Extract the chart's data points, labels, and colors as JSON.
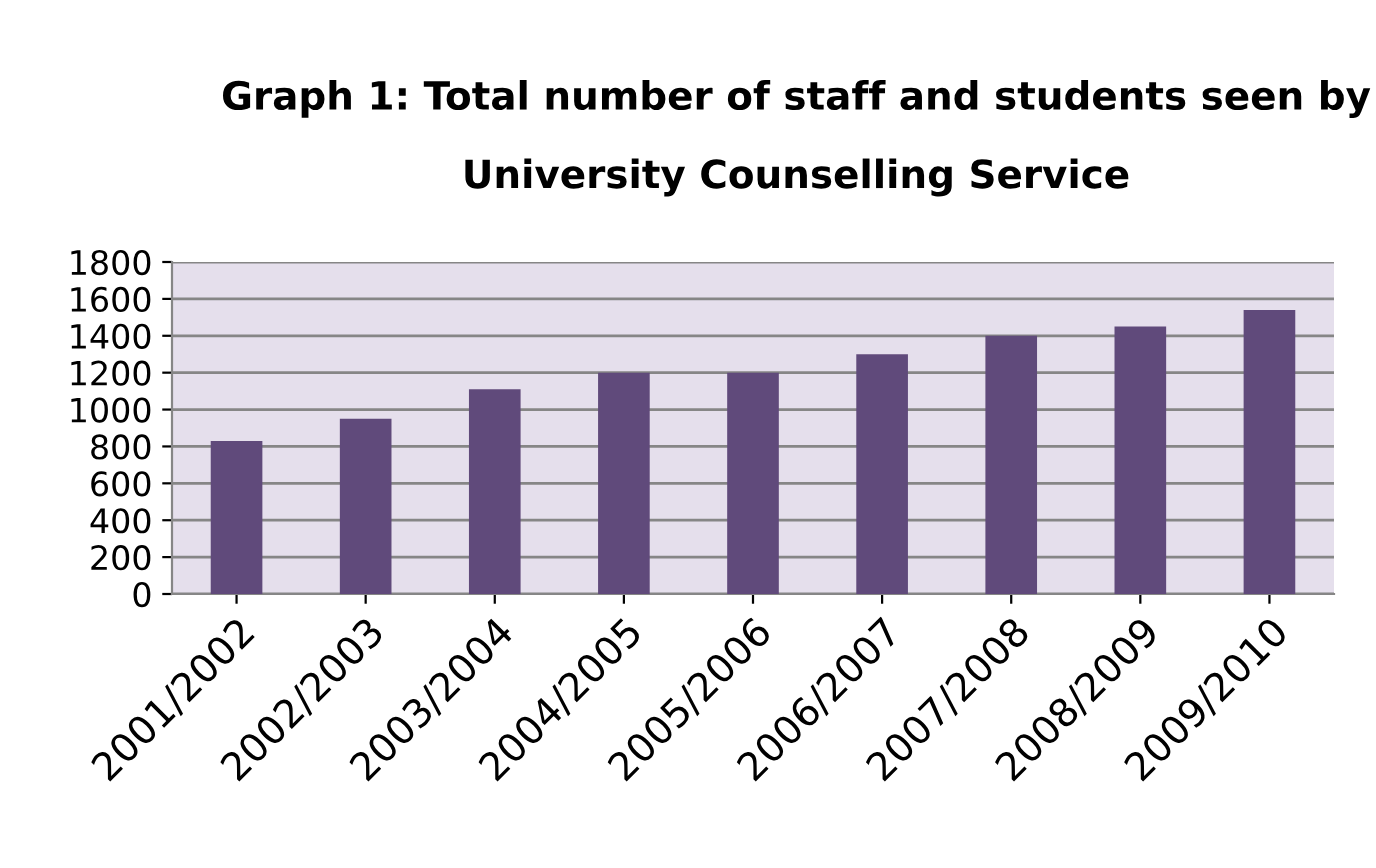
{
  "chart_data": {
    "type": "bar",
    "title": "Graph 1: Total number of staff and students seen by\n\nUniversity Counselling Service",
    "categories": [
      "2001/2002",
      "2002/2003",
      "2003/2004",
      "2004/2005",
      "2005/2006",
      "2006/2007",
      "2007/2008",
      "2008/2009",
      "2009/2010"
    ],
    "values": [
      830,
      950,
      1110,
      1200,
      1200,
      1300,
      1400,
      1450,
      1540
    ],
    "color": "#604a7b",
    "ylim": [
      0,
      1800
    ],
    "yticks": [
      0,
      200,
      400,
      600,
      800,
      1000,
      1200,
      1400,
      1600,
      1800
    ],
    "grid": "y",
    "legend": false
  }
}
